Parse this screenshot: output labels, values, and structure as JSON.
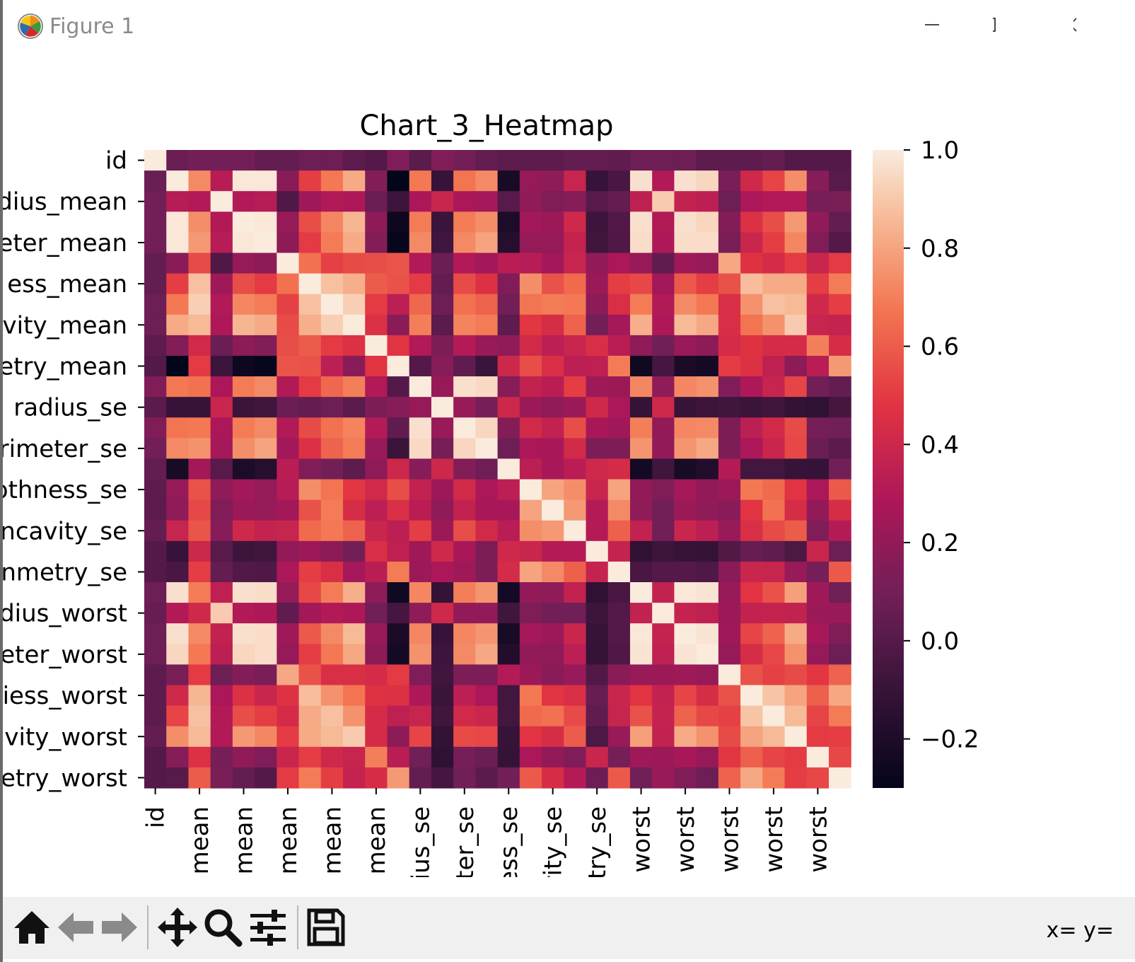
{
  "window": {
    "title": "Figure 1"
  },
  "toolbar": {
    "coords": "x= y=",
    "buttons": [
      "home-icon",
      "back-arrow-icon",
      "forward-arrow-icon",
      "pan-icon",
      "zoom-icon",
      "configure-subplots-icon",
      "save-icon"
    ]
  },
  "chart_data": {
    "type": "heatmap",
    "title": "Chart_3_Heatmap",
    "colormap": "rocket",
    "colorbar": {
      "min": -0.3,
      "max": 1.0,
      "ticks": [
        1.0,
        0.8,
        0.6,
        0.4,
        0.2,
        0.0,
        -0.2
      ]
    },
    "y_tick_labels": [
      "id",
      "dius_mean",
      "eter_mean",
      "ess_mean",
      "vity_mean",
      "etry_mean",
      "radius_se",
      "rimeter_se",
      "othness_se",
      "ncavity_se",
      "nmetry_se",
      "dius_worst",
      "eter_worst",
      "iess_worst",
      "vity_worst",
      "etry_worst"
    ],
    "x_tick_labels": [
      "id",
      "mean",
      "mean",
      "mean",
      "mean",
      "mean",
      "ius_se",
      "ter_se",
      "ess_se",
      "rity_se",
      "try_se",
      "worst",
      "worst",
      "worst",
      "worst",
      "worst"
    ],
    "values": [
      [
        1.0,
        0.07,
        0.1,
        0.1,
        0.1,
        0.05,
        0.05,
        0.08,
        0.08,
        0.03,
        0.0,
        0.14,
        0.02,
        0.14,
        0.1,
        0.05,
        0.03,
        0.03,
        0.03,
        0.05,
        0.05,
        0.04,
        0.08,
        0.08,
        0.08,
        0.03,
        0.03,
        0.03,
        0.05,
        0.0,
        0.0,
        0.0
      ],
      [
        0.07,
        1.0,
        0.73,
        0.32,
        0.99,
        0.99,
        0.17,
        0.51,
        0.68,
        0.82,
        0.15,
        -0.31,
        0.68,
        -0.1,
        0.67,
        0.73,
        -0.22,
        0.21,
        0.19,
        0.38,
        -0.1,
        -0.04,
        0.97,
        0.3,
        0.97,
        0.94,
        0.12,
        0.41,
        0.53,
        0.74,
        0.16,
        0.01
      ],
      [
        0.1,
        0.32,
        0.3,
        1.0,
        0.3,
        0.32,
        -0.02,
        0.24,
        0.3,
        0.29,
        0.07,
        -0.08,
        0.28,
        0.39,
        0.28,
        0.26,
        0.01,
        0.19,
        0.14,
        0.16,
        0.01,
        0.05,
        0.35,
        0.91,
        0.36,
        0.34,
        0.08,
        0.28,
        0.3,
        0.3,
        0.11,
        0.12
      ],
      [
        0.1,
        0.99,
        0.74,
        0.3,
        1.0,
        0.99,
        0.21,
        0.56,
        0.72,
        0.85,
        0.18,
        -0.26,
        0.69,
        -0.09,
        0.69,
        0.74,
        -0.2,
        0.25,
        0.23,
        0.41,
        -0.08,
        -0.01,
        0.97,
        0.3,
        0.97,
        0.94,
        0.15,
        0.46,
        0.56,
        0.77,
        0.19,
        0.05
      ],
      [
        0.1,
        0.99,
        0.77,
        0.32,
        0.99,
        1.0,
        0.18,
        0.5,
        0.69,
        0.82,
        0.15,
        -0.28,
        0.73,
        -0.07,
        0.73,
        0.8,
        -0.17,
        0.21,
        0.21,
        0.37,
        -0.07,
        -0.02,
        0.96,
        0.29,
        0.96,
        0.96,
        0.12,
        0.39,
        0.51,
        0.72,
        0.14,
        0.0
      ],
      [
        0.05,
        0.17,
        0.55,
        -0.02,
        0.21,
        0.18,
        1.0,
        0.66,
        0.52,
        0.55,
        0.56,
        0.58,
        0.3,
        0.07,
        0.3,
        0.25,
        0.33,
        0.32,
        0.25,
        0.38,
        0.2,
        0.28,
        0.21,
        0.04,
        0.24,
        0.21,
        0.81,
        0.47,
        0.43,
        0.5,
        0.39,
        0.5
      ],
      [
        0.05,
        0.51,
        0.88,
        0.24,
        0.56,
        0.5,
        0.66,
        1.0,
        0.88,
        0.83,
        0.6,
        0.57,
        0.5,
        0.05,
        0.55,
        0.46,
        0.14,
        0.74,
        0.57,
        0.64,
        0.23,
        0.51,
        0.54,
        0.25,
        0.59,
        0.51,
        0.57,
        0.87,
        0.82,
        0.82,
        0.51,
        0.69
      ],
      [
        0.08,
        0.68,
        0.92,
        0.3,
        0.72,
        0.69,
        0.52,
        0.88,
        1.0,
        0.92,
        0.5,
        0.34,
        0.63,
        0.08,
        0.66,
        0.62,
        0.1,
        0.67,
        0.69,
        0.68,
        0.18,
        0.45,
        0.69,
        0.3,
        0.73,
        0.68,
        0.45,
        0.75,
        0.88,
        0.86,
        0.41,
        0.51
      ],
      [
        0.08,
        0.82,
        0.86,
        0.29,
        0.85,
        0.82,
        0.55,
        0.83,
        0.92,
        1.0,
        0.46,
        0.17,
        0.7,
        0.02,
        0.71,
        0.69,
        0.03,
        0.49,
        0.44,
        0.62,
        0.1,
        0.26,
        0.83,
        0.29,
        0.86,
        0.81,
        0.45,
        0.67,
        0.75,
        0.91,
        0.38,
        0.37
      ],
      [
        0.03,
        0.15,
        0.42,
        0.07,
        0.18,
        0.15,
        0.56,
        0.6,
        0.5,
        0.46,
        1.0,
        0.48,
        0.3,
        0.13,
        0.31,
        0.22,
        0.19,
        0.42,
        0.34,
        0.39,
        0.45,
        0.33,
        0.19,
        0.09,
        0.22,
        0.18,
        0.43,
        0.47,
        0.43,
        0.43,
        0.7,
        0.44
      ],
      [
        0.0,
        -0.31,
        0.5,
        -0.08,
        -0.26,
        -0.28,
        0.58,
        0.57,
        0.34,
        0.17,
        0.48,
        1.0,
        0.0,
        0.16,
        0.04,
        -0.09,
        0.4,
        0.56,
        0.45,
        0.34,
        0.35,
        0.69,
        -0.25,
        -0.05,
        -0.21,
        -0.23,
        0.5,
        0.46,
        0.35,
        0.18,
        0.33,
        0.77
      ],
      [
        0.14,
        0.68,
        0.66,
        0.28,
        0.69,
        0.73,
        0.3,
        0.5,
        0.63,
        0.7,
        0.3,
        0.0,
        1.0,
        0.21,
        0.97,
        0.95,
        0.16,
        0.36,
        0.33,
        0.51,
        0.24,
        0.23,
        0.72,
        0.19,
        0.72,
        0.75,
        0.14,
        0.29,
        0.38,
        0.53,
        0.09,
        0.05
      ],
      [
        0.02,
        -0.1,
        -0.1,
        0.39,
        -0.09,
        -0.07,
        0.07,
        0.05,
        0.08,
        0.02,
        0.13,
        0.16,
        0.21,
        1.0,
        0.22,
        0.11,
        0.4,
        0.23,
        0.19,
        0.23,
        0.41,
        0.28,
        -0.11,
        0.41,
        -0.1,
        -0.08,
        -0.07,
        -0.09,
        -0.07,
        -0.12,
        -0.13,
        -0.05
      ],
      [
        0.14,
        0.67,
        0.68,
        0.28,
        0.69,
        0.73,
        0.3,
        0.55,
        0.66,
        0.71,
        0.31,
        0.04,
        0.97,
        0.22,
        1.0,
        0.94,
        0.15,
        0.42,
        0.36,
        0.56,
        0.27,
        0.24,
        0.7,
        0.2,
        0.72,
        0.73,
        0.13,
        0.34,
        0.42,
        0.55,
        0.11,
        0.09
      ],
      [
        0.1,
        0.73,
        0.75,
        0.26,
        0.74,
        0.8,
        0.25,
        0.46,
        0.62,
        0.69,
        0.22,
        -0.09,
        0.95,
        0.11,
        0.94,
        1.0,
        0.08,
        0.28,
        0.27,
        0.42,
        0.13,
        0.13,
        0.76,
        0.2,
        0.76,
        0.81,
        0.13,
        0.28,
        0.39,
        0.54,
        0.07,
        0.02
      ],
      [
        0.05,
        -0.22,
        0.25,
        0.01,
        -0.2,
        -0.17,
        0.33,
        0.14,
        0.1,
        0.03,
        0.19,
        0.4,
        0.16,
        0.4,
        0.15,
        0.08,
        1.0,
        0.34,
        0.27,
        0.33,
        0.41,
        0.43,
        -0.23,
        -0.07,
        -0.22,
        -0.18,
        0.31,
        -0.06,
        -0.06,
        -0.1,
        -0.11,
        0.1
      ],
      [
        0.03,
        0.21,
        0.57,
        0.19,
        0.25,
        0.21,
        0.32,
        0.74,
        0.67,
        0.49,
        0.42,
        0.56,
        0.36,
        0.23,
        0.42,
        0.28,
        0.34,
        1.0,
        0.8,
        0.74,
        0.39,
        0.8,
        0.2,
        0.14,
        0.26,
        0.2,
        0.23,
        0.68,
        0.64,
        0.48,
        0.28,
        0.59
      ],
      [
        0.03,
        0.19,
        0.54,
        0.14,
        0.23,
        0.21,
        0.25,
        0.57,
        0.69,
        0.44,
        0.34,
        0.45,
        0.33,
        0.19,
        0.36,
        0.27,
        0.27,
        0.8,
        1.0,
        0.77,
        0.31,
        0.73,
        0.19,
        0.1,
        0.23,
        0.19,
        0.17,
        0.48,
        0.66,
        0.44,
        0.2,
        0.44
      ],
      [
        0.05,
        0.38,
        0.58,
        0.16,
        0.41,
        0.37,
        0.38,
        0.64,
        0.68,
        0.62,
        0.39,
        0.34,
        0.51,
        0.23,
        0.56,
        0.42,
        0.33,
        0.74,
        0.77,
        1.0,
        0.31,
        0.61,
        0.36,
        0.09,
        0.39,
        0.34,
        0.22,
        0.45,
        0.55,
        0.6,
        0.14,
        0.31
      ],
      [
        0.0,
        -0.1,
        0.4,
        0.01,
        -0.08,
        -0.07,
        0.2,
        0.23,
        0.18,
        0.1,
        0.45,
        0.35,
        0.24,
        0.41,
        0.27,
        0.13,
        0.41,
        0.39,
        0.31,
        0.31,
        1.0,
        0.37,
        -0.13,
        -0.08,
        -0.1,
        -0.11,
        -0.01,
        0.06,
        0.04,
        -0.03,
        0.39,
        0.08
      ],
      [
        0.0,
        -0.04,
        0.51,
        0.05,
        -0.01,
        -0.02,
        0.28,
        0.51,
        0.45,
        0.26,
        0.33,
        0.69,
        0.23,
        0.28,
        0.24,
        0.13,
        0.43,
        0.8,
        0.73,
        0.61,
        0.37,
        1.0,
        -0.04,
        -0.0,
        -0.0,
        -0.02,
        0.17,
        0.39,
        0.38,
        0.22,
        0.11,
        0.59
      ],
      [
        0.08,
        0.97,
        0.69,
        0.35,
        0.97,
        0.96,
        0.21,
        0.54,
        0.69,
        0.83,
        0.19,
        -0.25,
        0.72,
        -0.11,
        0.7,
        0.76,
        -0.23,
        0.2,
        0.19,
        0.36,
        -0.13,
        -0.04,
        1.0,
        0.36,
        0.99,
        0.98,
        0.22,
        0.48,
        0.57,
        0.79,
        0.24,
        0.09
      ],
      [
        0.06,
        0.3,
        0.41,
        0.91,
        0.3,
        0.29,
        0.04,
        0.25,
        0.3,
        0.29,
        0.09,
        -0.05,
        0.19,
        0.41,
        0.2,
        0.2,
        -0.07,
        0.14,
        0.1,
        0.09,
        -0.08,
        0.0,
        0.36,
        1.0,
        0.37,
        0.35,
        0.23,
        0.36,
        0.37,
        0.36,
        0.23,
        0.22
      ],
      [
        0.08,
        0.97,
        0.73,
        0.36,
        0.97,
        0.96,
        0.24,
        0.59,
        0.73,
        0.86,
        0.22,
        -0.21,
        0.72,
        -0.1,
        0.72,
        0.76,
        -0.22,
        0.26,
        0.23,
        0.39,
        -0.1,
        -0.0,
        0.99,
        0.37,
        1.0,
        0.98,
        0.24,
        0.53,
        0.62,
        0.82,
        0.27,
        0.14
      ],
      [
        0.08,
        0.94,
        0.68,
        0.34,
        0.94,
        0.96,
        0.21,
        0.51,
        0.68,
        0.81,
        0.18,
        -0.23,
        0.75,
        -0.08,
        0.73,
        0.81,
        -0.18,
        0.2,
        0.19,
        0.34,
        -0.11,
        -0.02,
        0.98,
        0.35,
        0.98,
        1.0,
        0.21,
        0.44,
        0.54,
        0.75,
        0.21,
        0.08
      ],
      [
        0.03,
        0.12,
        0.5,
        0.08,
        0.15,
        0.12,
        0.81,
        0.57,
        0.45,
        0.45,
        0.43,
        0.5,
        0.14,
        -0.07,
        0.13,
        0.13,
        0.31,
        0.23,
        0.17,
        0.22,
        -0.01,
        0.17,
        0.22,
        0.23,
        0.24,
        0.21,
        1.0,
        0.57,
        0.52,
        0.55,
        0.49,
        0.62
      ],
      [
        0.03,
        0.41,
        0.85,
        0.28,
        0.46,
        0.39,
        0.47,
        0.87,
        0.75,
        0.67,
        0.47,
        0.46,
        0.29,
        -0.09,
        0.34,
        0.28,
        -0.06,
        0.68,
        0.48,
        0.45,
        0.06,
        0.39,
        0.48,
        0.36,
        0.53,
        0.44,
        0.57,
        1.0,
        0.89,
        0.8,
        0.61,
        0.81
      ],
      [
        0.03,
        0.53,
        0.88,
        0.3,
        0.56,
        0.51,
        0.43,
        0.82,
        0.88,
        0.75,
        0.43,
        0.35,
        0.38,
        -0.07,
        0.42,
        0.39,
        -0.06,
        0.64,
        0.66,
        0.55,
        0.04,
        0.38,
        0.57,
        0.37,
        0.62,
        0.54,
        0.52,
        0.89,
        1.0,
        0.86,
        0.53,
        0.69
      ],
      [
        0.05,
        0.74,
        0.86,
        0.3,
        0.77,
        0.72,
        0.5,
        0.82,
        0.86,
        0.91,
        0.43,
        0.18,
        0.53,
        -0.12,
        0.55,
        0.54,
        -0.1,
        0.48,
        0.44,
        0.6,
        -0.03,
        0.22,
        0.79,
        0.36,
        0.82,
        0.75,
        0.55,
        0.8,
        0.86,
        1.0,
        0.5,
        0.51
      ],
      [
        0.0,
        0.16,
        0.46,
        0.11,
        0.19,
        0.14,
        0.39,
        0.51,
        0.41,
        0.38,
        0.7,
        0.33,
        0.09,
        -0.13,
        0.11,
        0.07,
        -0.11,
        0.28,
        0.2,
        0.14,
        0.39,
        0.11,
        0.24,
        0.23,
        0.27,
        0.21,
        0.49,
        0.61,
        0.53,
        0.5,
        1.0,
        0.54
      ],
      [
        0.0,
        0.01,
        0.6,
        0.12,
        0.05,
        0.0,
        0.5,
        0.69,
        0.51,
        0.37,
        0.44,
        0.77,
        0.05,
        -0.05,
        0.09,
        0.02,
        0.1,
        0.59,
        0.44,
        0.31,
        0.08,
        0.59,
        0.09,
        0.22,
        0.14,
        0.08,
        0.62,
        0.81,
        0.69,
        0.51,
        0.54,
        1.0
      ]
    ]
  }
}
